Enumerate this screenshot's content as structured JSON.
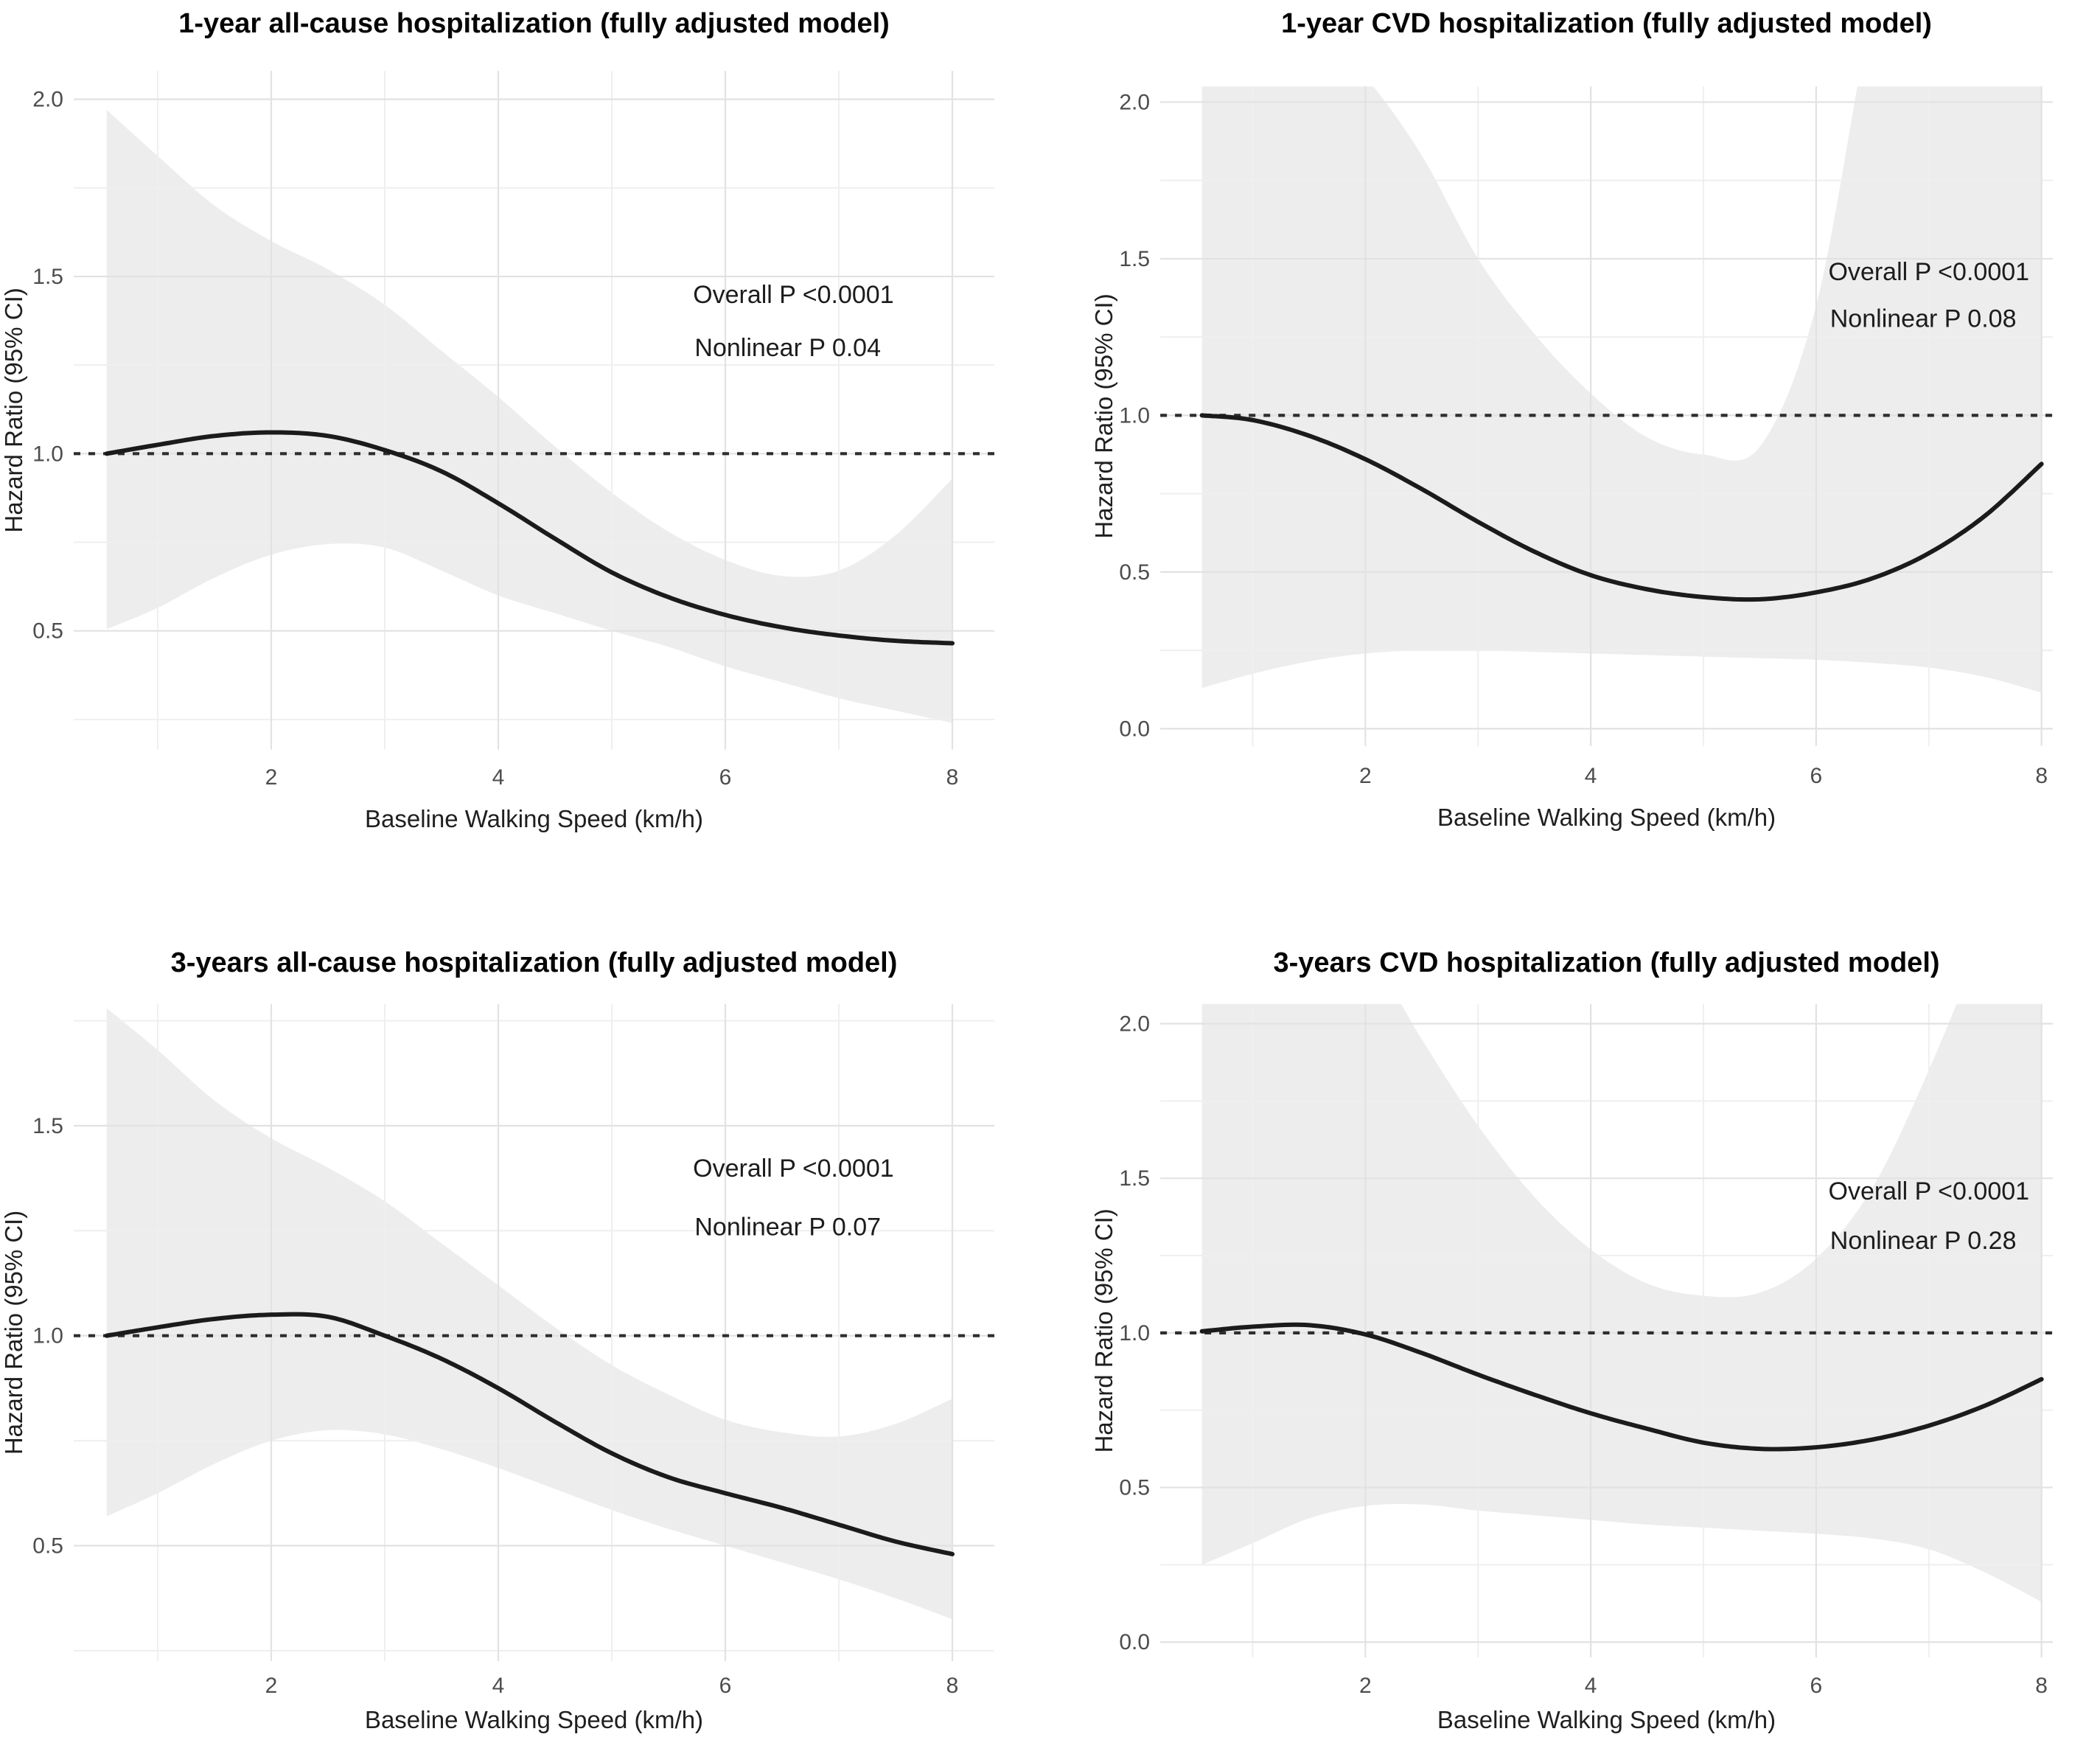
{
  "figure": {
    "type": "multi-panel-spline-hazard-ratio-figure",
    "layout": "2x2",
    "colors": {
      "background": "#ffffff",
      "curve": "#1b1b1b",
      "ci_band": "#ededed",
      "grid_major": "#e2e2e2",
      "grid_minor": "#efefef",
      "reference_line": "#2e2e2e",
      "tick_label": "#4d4d4d",
      "axis_label": "#1f1f1f",
      "annotation": "#1c1c1c",
      "title": "#050505"
    }
  },
  "chart_data": [
    {
      "id": "1yr-all-cause",
      "type": "line",
      "title": "1-year all-cause hospitalization (fully adjusted model)",
      "xlabel": "Baseline Walking Speed (km/h)",
      "ylabel": "Hazard Ratio (95% CI)",
      "legend": "none",
      "grid": "on",
      "xlim": [
        0.26,
        8.37
      ],
      "ylim": [
        0.165,
        2.08
      ],
      "x_ticks": [
        {
          "value": 2,
          "label": "2"
        },
        {
          "value": 4,
          "label": "4"
        },
        {
          "value": 6,
          "label": "6"
        },
        {
          "value": 8,
          "label": "8"
        }
      ],
      "x_minor": [
        1,
        3,
        5,
        7
      ],
      "y_ticks": [
        {
          "value": 2.0,
          "label": "2.0"
        },
        {
          "value": 1.5,
          "label": "1.5"
        },
        {
          "value": 1.0,
          "label": "1.0"
        },
        {
          "value": 0.5,
          "label": "0.5"
        }
      ],
      "y_minor": [
        1.75,
        1.25,
        0.75,
        0.25
      ],
      "reference_line_y": 1.0,
      "annotations": [
        {
          "text": "Overall P <0.0001",
          "x": 6.6,
          "y": 1.45
        },
        {
          "text": "Nonlinear P 0.04",
          "x": 6.55,
          "y": 1.3
        }
      ],
      "x": [
        0.55,
        1,
        1.5,
        2,
        2.5,
        3,
        3.5,
        4,
        4.5,
        5,
        5.5,
        6,
        6.5,
        7,
        7.5,
        8
      ],
      "series": [
        {
          "name": "hazard-ratio",
          "values": [
            1.0,
            1.025,
            1.05,
            1.06,
            1.05,
            1.01,
            0.95,
            0.86,
            0.76,
            0.665,
            0.595,
            0.545,
            0.51,
            0.487,
            0.472,
            0.465
          ]
        }
      ],
      "ci_upper": [
        1.97,
        1.84,
        1.7,
        1.6,
        1.52,
        1.42,
        1.29,
        1.16,
        1.02,
        0.89,
        0.78,
        0.7,
        0.655,
        0.67,
        0.77,
        0.93
      ],
      "ci_lower": [
        0.505,
        0.565,
        0.65,
        0.715,
        0.745,
        0.735,
        0.67,
        0.6,
        0.55,
        0.5,
        0.455,
        0.4,
        0.355,
        0.31,
        0.275,
        0.24
      ]
    },
    {
      "id": "1yr-cvd",
      "type": "line",
      "title": "1-year CVD hospitalization (fully adjusted model)",
      "xlabel": "Baseline Walking Speed (km/h)",
      "ylabel": "Hazard Ratio (95% CI)",
      "legend": "none",
      "grid": "on",
      "xlim": [
        0.18,
        8.1
      ],
      "ylim": [
        -0.055,
        2.05
      ],
      "x_ticks": [
        {
          "value": 2,
          "label": "2"
        },
        {
          "value": 4,
          "label": "4"
        },
        {
          "value": 6,
          "label": "6"
        },
        {
          "value": 8,
          "label": "8"
        }
      ],
      "x_minor": [
        1,
        3,
        5,
        7
      ],
      "y_ticks": [
        {
          "value": 2.0,
          "label": "2.0"
        },
        {
          "value": 1.5,
          "label": "1.5"
        },
        {
          "value": 1.0,
          "label": "1.0"
        },
        {
          "value": 0.5,
          "label": "0.5"
        },
        {
          "value": 0.0,
          "label": "0.0"
        }
      ],
      "y_minor": [
        1.75,
        1.25,
        0.75,
        0.25
      ],
      "reference_line_y": 1.0,
      "annotations": [
        {
          "text": "Overall P <0.0001",
          "x": 7.0,
          "y": 1.46
        },
        {
          "text": "Nonlinear P 0.08",
          "x": 6.95,
          "y": 1.31
        }
      ],
      "x": [
        0.55,
        1,
        1.5,
        2,
        2.5,
        3,
        3.5,
        4,
        4.5,
        5,
        5.5,
        6,
        6.5,
        7,
        7.5,
        8
      ],
      "series": [
        {
          "name": "hazard-ratio",
          "values": [
            1.0,
            0.985,
            0.935,
            0.86,
            0.765,
            0.66,
            0.565,
            0.49,
            0.445,
            0.42,
            0.413,
            0.435,
            0.48,
            0.56,
            0.68,
            0.845
          ]
        }
      ],
      "ci_upper": [
        2.3,
        2.3,
        2.25,
        2.08,
        1.83,
        1.5,
        1.26,
        1.07,
        0.93,
        0.875,
        0.9,
        1.35,
        2.3,
        3.0,
        3.0,
        3.0
      ],
      "ci_lower": [
        0.13,
        0.175,
        0.215,
        0.24,
        0.25,
        0.25,
        0.245,
        0.24,
        0.235,
        0.23,
        0.225,
        0.22,
        0.21,
        0.195,
        0.165,
        0.115
      ]
    },
    {
      "id": "3yr-all-cause",
      "type": "line",
      "title": "3-years all-cause hospitalization (fully adjusted model)",
      "xlabel": "Baseline Walking Speed (km/h)",
      "ylabel": "Hazard Ratio (95% CI)",
      "legend": "none",
      "grid": "on",
      "xlim": [
        0.26,
        8.37
      ],
      "ylim": [
        0.225,
        1.79
      ],
      "x_ticks": [
        {
          "value": 2,
          "label": "2"
        },
        {
          "value": 4,
          "label": "4"
        },
        {
          "value": 6,
          "label": "6"
        },
        {
          "value": 8,
          "label": "8"
        }
      ],
      "x_minor": [
        1,
        3,
        5,
        7
      ],
      "y_ticks": [
        {
          "value": 1.5,
          "label": "1.5"
        },
        {
          "value": 1.0,
          "label": "1.0"
        },
        {
          "value": 0.5,
          "label": "0.5"
        }
      ],
      "y_minor": [
        1.75,
        1.25,
        0.75,
        0.25
      ],
      "reference_line_y": 1.0,
      "annotations": [
        {
          "text": "Overall P <0.0001",
          "x": 6.6,
          "y": 1.4
        },
        {
          "text": "Nonlinear P 0.07",
          "x": 6.55,
          "y": 1.26
        }
      ],
      "x": [
        0.55,
        1,
        1.5,
        2,
        2.5,
        3,
        3.5,
        4,
        4.5,
        5,
        5.5,
        6,
        6.5,
        7,
        7.5,
        8
      ],
      "series": [
        {
          "name": "hazard-ratio",
          "values": [
            1.0,
            1.02,
            1.04,
            1.05,
            1.045,
            1.0,
            0.945,
            0.875,
            0.795,
            0.72,
            0.663,
            0.625,
            0.59,
            0.55,
            0.51,
            0.48
          ]
        }
      ],
      "ci_upper": [
        1.78,
        1.68,
        1.56,
        1.47,
        1.4,
        1.32,
        1.22,
        1.12,
        1.02,
        0.93,
        0.86,
        0.8,
        0.77,
        0.76,
        0.79,
        0.85
      ],
      "ci_lower": [
        0.57,
        0.625,
        0.695,
        0.75,
        0.775,
        0.765,
        0.73,
        0.685,
        0.635,
        0.585,
        0.54,
        0.5,
        0.46,
        0.42,
        0.375,
        0.325
      ]
    },
    {
      "id": "3yr-cvd",
      "type": "line",
      "title": "3-years CVD hospitalization (fully adjusted model)",
      "xlabel": "Baseline Walking Speed (km/h)",
      "ylabel": "Hazard Ratio (95% CI)",
      "legend": "none",
      "grid": "on",
      "xlim": [
        0.18,
        8.1
      ],
      "ylim": [
        -0.05,
        2.064
      ],
      "x_ticks": [
        {
          "value": 2,
          "label": "2"
        },
        {
          "value": 4,
          "label": "4"
        },
        {
          "value": 6,
          "label": "6"
        },
        {
          "value": 8,
          "label": "8"
        }
      ],
      "x_minor": [
        1,
        3,
        5,
        7
      ],
      "y_ticks": [
        {
          "value": 2.0,
          "label": "2.0"
        },
        {
          "value": 1.5,
          "label": "1.5"
        },
        {
          "value": 1.0,
          "label": "1.0"
        },
        {
          "value": 0.5,
          "label": "0.5"
        },
        {
          "value": 0.0,
          "label": "0.0"
        }
      ],
      "y_minor": [
        1.75,
        1.25,
        0.75,
        0.25
      ],
      "reference_line_y": 1.0,
      "annotations": [
        {
          "text": "Overall P <0.0001",
          "x": 7.0,
          "y": 1.46
        },
        {
          "text": "Nonlinear P 0.28",
          "x": 6.95,
          "y": 1.3
        }
      ],
      "x": [
        0.55,
        1,
        1.5,
        2,
        2.5,
        3,
        3.5,
        4,
        4.5,
        5,
        5.5,
        6,
        6.5,
        7,
        7.5,
        8
      ],
      "series": [
        {
          "name": "hazard-ratio",
          "values": [
            1.005,
            1.02,
            1.025,
            0.995,
            0.935,
            0.865,
            0.8,
            0.74,
            0.69,
            0.645,
            0.625,
            0.63,
            0.655,
            0.7,
            0.765,
            0.85
          ]
        }
      ],
      "ci_upper": [
        2.4,
        2.4,
        2.4,
        2.25,
        1.95,
        1.67,
        1.44,
        1.27,
        1.16,
        1.12,
        1.13,
        1.24,
        1.47,
        1.85,
        2.3,
        2.8
      ],
      "ci_lower": [
        0.25,
        0.32,
        0.4,
        0.44,
        0.445,
        0.425,
        0.41,
        0.395,
        0.38,
        0.37,
        0.36,
        0.35,
        0.335,
        0.3,
        0.225,
        0.13
      ]
    }
  ]
}
